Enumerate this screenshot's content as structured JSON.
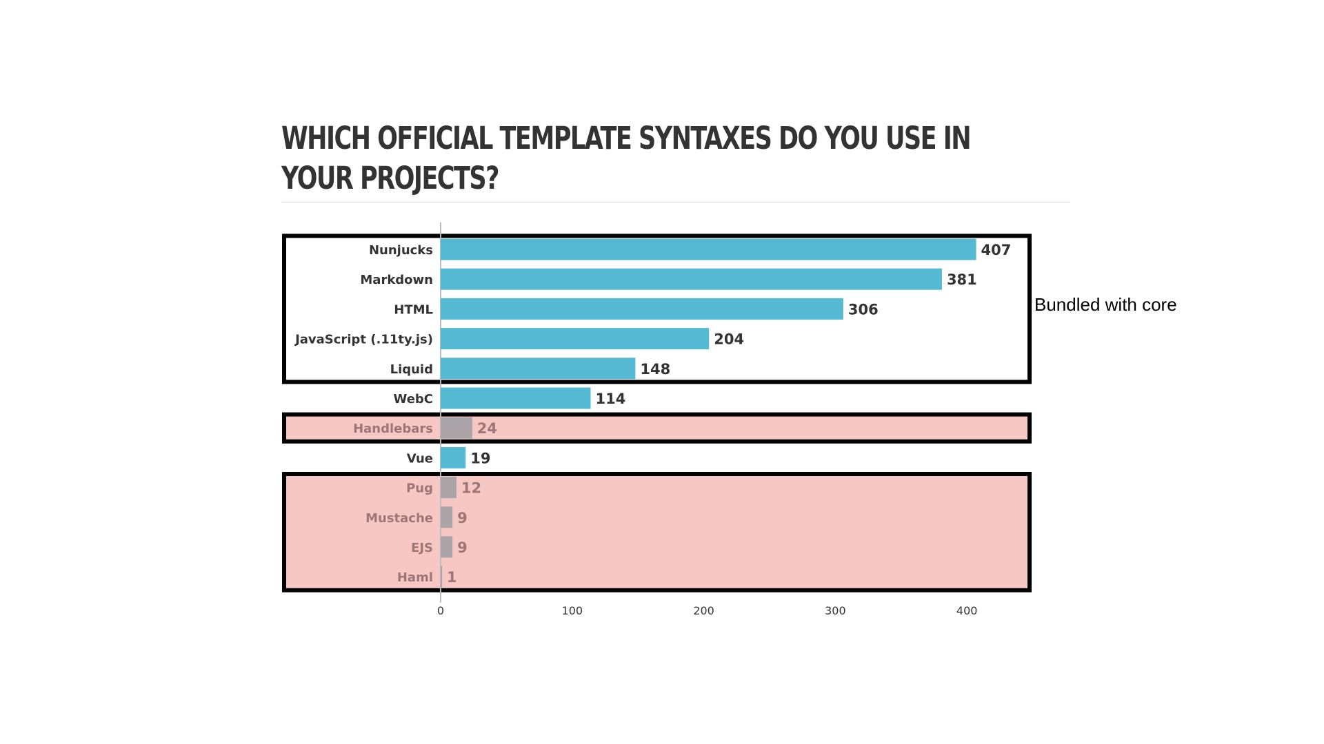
{
  "chart_data": {
    "type": "bar",
    "orientation": "horizontal",
    "title": "WHICH OFFICIAL TEMPLATE SYNTAXES DO YOU USE IN YOUR PROJECTS?",
    "title_lines": [
      "WHICH OFFICIAL TEMPLATE SYNTAXES DO YOU USE IN",
      "YOUR PROJECTS?"
    ],
    "categories": [
      "Nunjucks",
      "Markdown",
      "HTML",
      "JavaScript (.11ty.js)",
      "Liquid",
      "WebC",
      "Handlebars",
      "Vue",
      "Pug",
      "Mustache",
      "EJS",
      "Haml"
    ],
    "values": [
      407,
      381,
      306,
      204,
      148,
      114,
      24,
      19,
      12,
      9,
      9,
      1
    ],
    "deemphasized": [
      false,
      false,
      false,
      false,
      false,
      false,
      true,
      false,
      true,
      true,
      true,
      true
    ],
    "xlim": [
      0,
      450
    ],
    "xticks": [
      0,
      100,
      200,
      300,
      400
    ],
    "xlabel": "",
    "ylabel": "",
    "grid": false,
    "colors": {
      "bar": "#56b9d3",
      "bar_muted": "#aaa4a8",
      "highlight_fill": "#f6c7c3",
      "label": "#333333",
      "label_muted": "#9e7676",
      "frame": "#000000"
    },
    "groups": [
      {
        "name": "Bundled with core",
        "categories": [
          "Nunjucks",
          "Markdown",
          "HTML",
          "JavaScript (.11ty.js)",
          "Liquid"
        ],
        "highlight": "outline"
      },
      {
        "name": "",
        "categories": [
          "Handlebars"
        ],
        "highlight": "filled"
      },
      {
        "name": "",
        "categories": [
          "Pug",
          "Mustache",
          "EJS",
          "Haml"
        ],
        "highlight": "filled"
      }
    ]
  },
  "annotation": "Bundled with core"
}
